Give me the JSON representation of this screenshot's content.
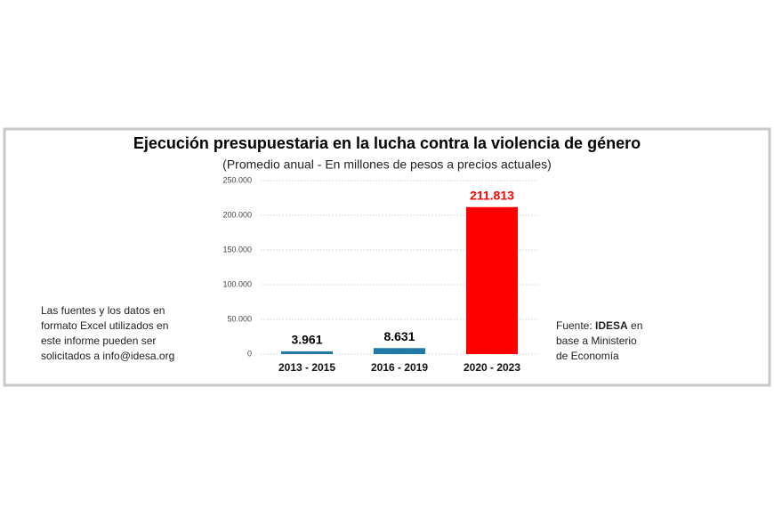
{
  "chart_data": {
    "type": "bar",
    "title": "Ejecución presupuestaria en la lucha contra la violencia de género",
    "subtitle": "(Promedio anual - En millones de pesos a precios actuales)",
    "categories": [
      "2013 - 2015",
      "2016 - 2019",
      "2020 - 2023"
    ],
    "values": [
      3961,
      8631,
      211813
    ],
    "value_labels": [
      "3.961",
      "8.631",
      "211.813"
    ],
    "colors": [
      "#1f7aa8",
      "#1f7aa8",
      "#ff0000"
    ],
    "value_label_colors": [
      "#000000",
      "#000000",
      "#ff0000"
    ],
    "ylim": [
      0,
      250000
    ],
    "yticks": [
      0,
      {
        "value": 50000,
        "label": "50.000"
      },
      {
        "value": 100000,
        "label": "100.000"
      },
      {
        "value": 150000,
        "label": "150.000"
      },
      {
        "value": 200000,
        "label": "200.000"
      },
      {
        "value": 250000,
        "label": "250.000"
      }
    ],
    "grid": true,
    "left_note": [
      "Las fuentes y los datos en",
      "formato Excel utilizados en",
      "este informe pueden ser",
      "solicitados a info@idesa.org"
    ],
    "right_note": {
      "prefix": "Fuente: ",
      "bold": "IDESA",
      "suffix": " en",
      "lines": [
        "base a Ministerio",
        "de Economía"
      ]
    }
  }
}
